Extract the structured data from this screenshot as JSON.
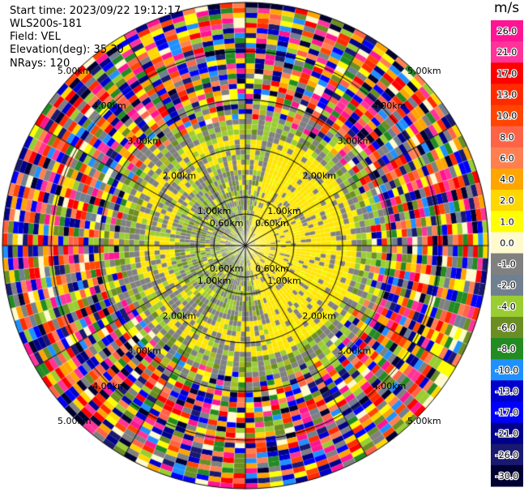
{
  "header": {
    "start_time": "Start time: 2023/09/22 19:12:17",
    "instrument": "WLS200s-181",
    "field": "Field: VEL",
    "elevation": "Elevation(deg): 35.30",
    "nrays": "NRays: 120"
  },
  "colorbar": {
    "unit": "m/s",
    "ticks": [
      "26.0",
      "21.0",
      "17.0",
      "13.0",
      "10.0",
      "8.0",
      "6.0",
      "4.0",
      "2.0",
      "1.0",
      "0.0",
      "-1.0",
      "-2.0",
      "-4.0",
      "-6.0",
      "-8.0",
      "-10.0",
      "-13.0",
      "-17.0",
      "-21.0",
      "-26.0",
      "-30.0"
    ],
    "colors": [
      "#ff1493",
      "#ff3399",
      "#ff0000",
      "#ff2a00",
      "#ff4500",
      "#ff6347",
      "#ff7f50",
      "#ffa500",
      "#ffd700",
      "#ffff00",
      "#fffacd",
      "#808080",
      "#708090",
      "#9acd32",
      "#6b8e23",
      "#228b22",
      "#1e90ff",
      "#0000cd",
      "#0000ff",
      "#00008b",
      "#191970",
      "#000033"
    ]
  },
  "chart_data": {
    "type": "heatmap",
    "projection": "polar (PPI scan)",
    "field": "VEL",
    "units": "m/s",
    "n_rays": 120,
    "n_range_rings": 6,
    "ring_labels": [
      "0.60km",
      "1.00km",
      "2.00km",
      "3.00km",
      "4.00km",
      "5.00km"
    ],
    "value_range": [
      -30.0,
      26.0
    ],
    "near_field": "radial velocity mostly -4 to +2 m/s (grey, olive and yellow-green), strong yellow positive core on the east side",
    "far_field": "noise: random colors over the full scale"
  }
}
